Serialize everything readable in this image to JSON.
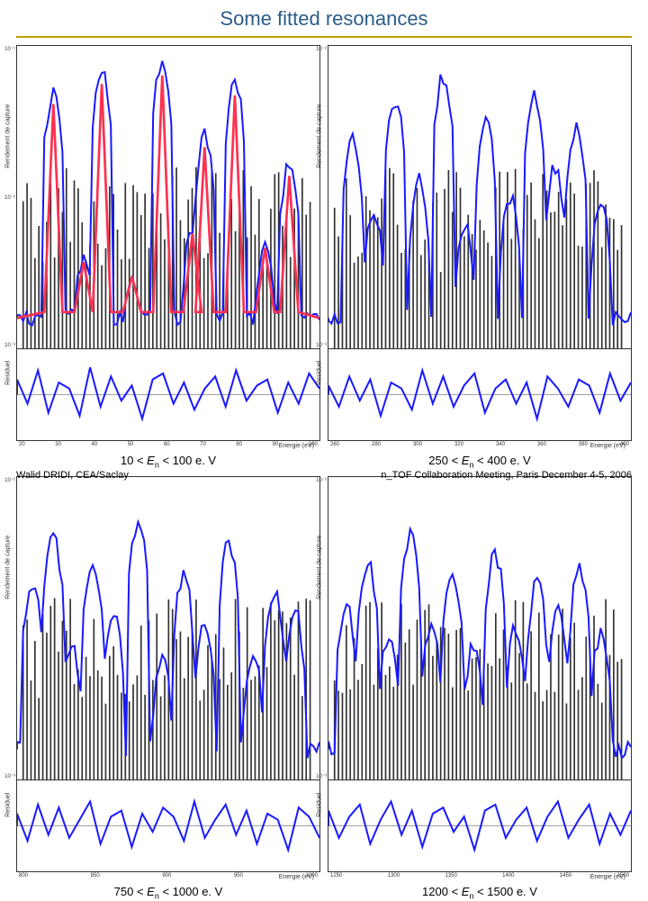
{
  "title": "Some fitted resonances",
  "ylabel_main": "Rendement de capture",
  "ylabel_res": "Residuel",
  "xlabel": "Energie (eV)",
  "panels": [
    {
      "caption_prefix": "10 < ",
      "caption_mid": "E",
      "caption_sub": "n",
      "caption_suffix": " < 100 e. V",
      "xticks": [
        "20",
        "30",
        "40",
        "50",
        "60",
        "70",
        "80",
        "90",
        "100"
      ],
      "yticks": [
        "10⁻¹",
        "10⁻²",
        "10⁻³"
      ],
      "line_color": "#1a1aff",
      "overlay_color": "#ff3050",
      "bar_color": "#000000",
      "peaks": [
        {
          "x": 12,
          "h": 85
        },
        {
          "x": 22,
          "h": 30
        },
        {
          "x": 28,
          "h": 92
        },
        {
          "x": 38,
          "h": 25
        },
        {
          "x": 48,
          "h": 95
        },
        {
          "x": 58,
          "h": 40
        },
        {
          "x": 62,
          "h": 70
        },
        {
          "x": 72,
          "h": 88
        },
        {
          "x": 82,
          "h": 35
        },
        {
          "x": 90,
          "h": 60
        }
      ],
      "residual": [
        5,
        -3,
        8,
        -6,
        4,
        2,
        -7,
        9,
        -4,
        6,
        -2,
        3,
        -8,
        5,
        7,
        -3,
        4,
        -5,
        2,
        6,
        -4,
        8,
        -2,
        3,
        5,
        -6,
        4,
        -3,
        7,
        2
      ]
    },
    {
      "caption_prefix": "250 < ",
      "caption_mid": "E",
      "caption_sub": "n",
      "caption_suffix": " < 400 e. V",
      "xticks": [
        "260",
        "280",
        "300",
        "320",
        "340",
        "360",
        "380",
        "400"
      ],
      "yticks": [
        "10⁻²",
        "10⁻³"
      ],
      "line_color": "#1a1aff",
      "overlay_color": "#1a1aff",
      "bar_color": "#000000",
      "peaks": [
        {
          "x": 8,
          "h": 70
        },
        {
          "x": 15,
          "h": 45
        },
        {
          "x": 22,
          "h": 82
        },
        {
          "x": 30,
          "h": 55
        },
        {
          "x": 38,
          "h": 90
        },
        {
          "x": 45,
          "h": 40
        },
        {
          "x": 52,
          "h": 75
        },
        {
          "x": 60,
          "h": 50
        },
        {
          "x": 68,
          "h": 85
        },
        {
          "x": 75,
          "h": 60
        },
        {
          "x": 82,
          "h": 72
        },
        {
          "x": 90,
          "h": 48
        }
      ],
      "residual": [
        3,
        -4,
        6,
        -2,
        5,
        -7,
        4,
        2,
        -5,
        8,
        -3,
        6,
        -4,
        3,
        7,
        -6,
        2,
        5,
        -3,
        4,
        -8,
        6,
        2,
        -4,
        5,
        3,
        -6,
        7,
        -2,
        4
      ]
    },
    {
      "caption_prefix": "750 < ",
      "caption_mid": "E",
      "caption_sub": "n",
      "caption_suffix": " < 1000 e. V",
      "xticks": [
        "800",
        "850",
        "900",
        "950",
        "1000"
      ],
      "yticks": [
        "10⁻²",
        "10⁻³"
      ],
      "line_color": "#1a1aff",
      "overlay_color": "#1a1aff",
      "bar_color": "#000000",
      "peaks": [
        {
          "x": 5,
          "h": 65
        },
        {
          "x": 12,
          "h": 80
        },
        {
          "x": 18,
          "h": 45
        },
        {
          "x": 25,
          "h": 72
        },
        {
          "x": 32,
          "h": 55
        },
        {
          "x": 40,
          "h": 85
        },
        {
          "x": 48,
          "h": 40
        },
        {
          "x": 55,
          "h": 68
        },
        {
          "x": 62,
          "h": 50
        },
        {
          "x": 70,
          "h": 78
        },
        {
          "x": 78,
          "h": 42
        },
        {
          "x": 85,
          "h": 62
        },
        {
          "x": 92,
          "h": 55
        }
      ],
      "residual": [
        4,
        -5,
        7,
        -3,
        6,
        -4,
        2,
        8,
        -6,
        3,
        5,
        -7,
        4,
        -2,
        6,
        3,
        -5,
        8,
        -4,
        2,
        7,
        -3,
        5,
        -6,
        4,
        2,
        -8,
        6,
        3,
        -4
      ]
    },
    {
      "caption_prefix": "1200 < ",
      "caption_mid": "E",
      "caption_sub": "n",
      "caption_suffix": " < 1500 e. V",
      "xticks": [
        "1250",
        "1300",
        "1350",
        "1400",
        "1450",
        "1500"
      ],
      "yticks": [
        "10⁻²",
        "10⁻³"
      ],
      "line_color": "#1a1aff",
      "overlay_color": "#1a1aff",
      "bar_color": "#000000",
      "peaks": [
        {
          "x": 6,
          "h": 58
        },
        {
          "x": 13,
          "h": 72
        },
        {
          "x": 20,
          "h": 48
        },
        {
          "x": 27,
          "h": 80
        },
        {
          "x": 34,
          "h": 52
        },
        {
          "x": 41,
          "h": 68
        },
        {
          "x": 48,
          "h": 45
        },
        {
          "x": 55,
          "h": 75
        },
        {
          "x": 62,
          "h": 50
        },
        {
          "x": 69,
          "h": 65
        },
        {
          "x": 76,
          "h": 55
        },
        {
          "x": 83,
          "h": 70
        },
        {
          "x": 90,
          "h": 48
        }
      ],
      "residual": [
        5,
        -4,
        3,
        7,
        -6,
        2,
        8,
        -3,
        5,
        -7,
        4,
        6,
        -2,
        3,
        -8,
        5,
        7,
        -4,
        2,
        6,
        -5,
        3,
        8,
        -4,
        2,
        7,
        -6,
        4,
        -3,
        5
      ]
    }
  ],
  "footer_left": "Walid DRIDI, CEA/Saclay",
  "footer_right": "n_TOF Collaboration Meeting, Paris December 4-5, 2006",
  "colors": {
    "title": "#2a5c8a",
    "underline": "#c0a000",
    "grid": "#cccccc"
  }
}
